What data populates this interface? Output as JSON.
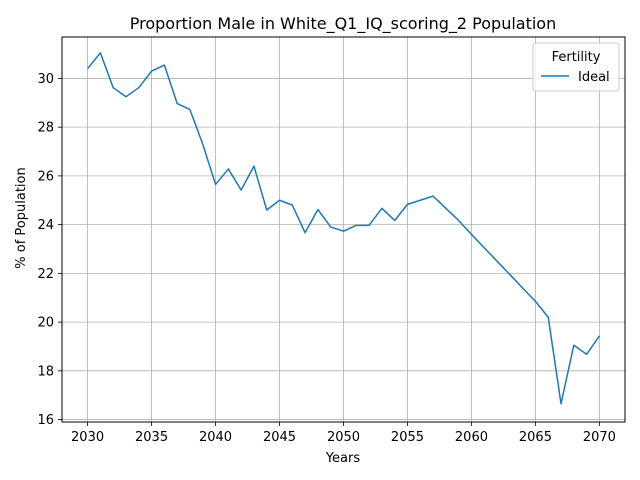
{
  "chart_data": {
    "type": "line",
    "title": "Proportion Male in White_Q1_IQ_scoring_2 Population",
    "xlabel": "Years",
    "ylabel": "% of Population",
    "xlim": [
      2028,
      2072
    ],
    "ylim": [
      15.9,
      31.7
    ],
    "xticks": [
      2030,
      2035,
      2040,
      2045,
      2050,
      2055,
      2060,
      2065,
      2070
    ],
    "yticks": [
      16,
      18,
      20,
      22,
      24,
      26,
      28,
      30
    ],
    "grid": true,
    "legend": {
      "title": "Fertility",
      "placement": "top-right"
    },
    "series": [
      {
        "name": "Ideal",
        "color": "#1f77b4",
        "x": [
          2030,
          2031,
          2032,
          2033,
          2034,
          2035,
          2036,
          2037,
          2038,
          2039,
          2040,
          2041,
          2042,
          2043,
          2044,
          2045,
          2046,
          2047,
          2048,
          2049,
          2050,
          2051,
          2052,
          2053,
          2054,
          2055,
          2056,
          2057,
          2058,
          2059,
          2060,
          2061,
          2062,
          2063,
          2064,
          2065,
          2066,
          2067,
          2068,
          2069,
          2070
        ],
        "values": [
          30.4,
          31.05,
          29.62,
          29.25,
          29.62,
          30.3,
          30.55,
          28.97,
          28.72,
          27.3,
          25.65,
          26.28,
          25.42,
          26.4,
          24.6,
          25.0,
          24.8,
          23.67,
          24.62,
          23.9,
          23.73,
          23.97,
          23.97,
          24.67,
          24.17,
          24.83,
          25.0,
          25.17,
          24.67,
          24.17,
          23.6,
          23.05,
          22.5,
          21.95,
          21.4,
          20.85,
          20.2,
          16.65,
          19.05,
          18.68,
          19.43
        ]
      }
    ]
  }
}
